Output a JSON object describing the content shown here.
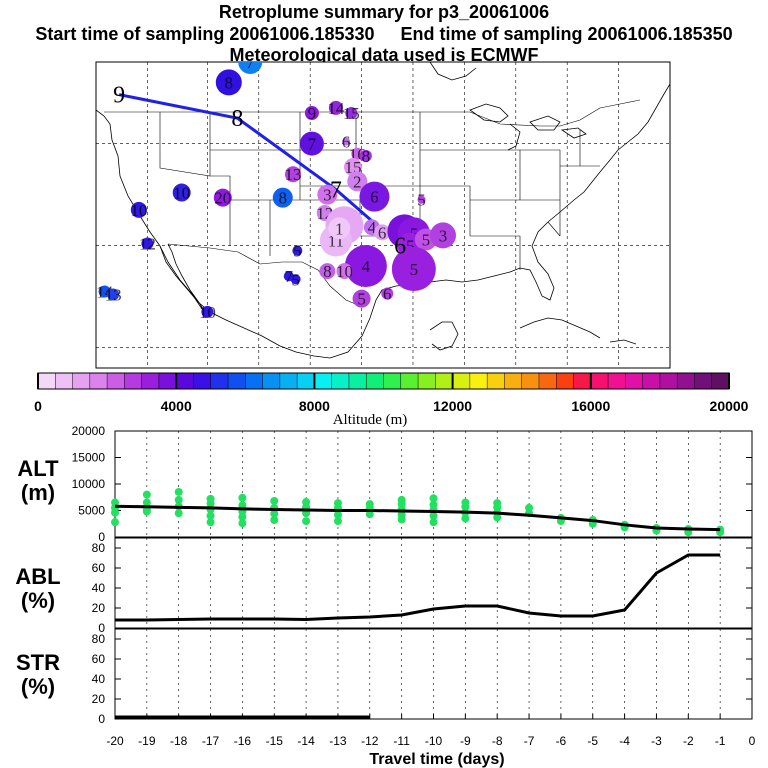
{
  "header": {
    "title": "Retroplume summary for p3_20061006",
    "start_label": "Start time of sampling 20061006.185330",
    "end_label": "End time of sampling 20061006.185350",
    "met_label": "Meteorological data used is ECMWF"
  },
  "colorbar": {
    "ticks": [
      "0",
      "4000",
      "8000",
      "12000",
      "16000",
      "20000"
    ],
    "label": "Altitude (m)",
    "colors": [
      "#f4d8f8",
      "#eec0f5",
      "#e6a2f1",
      "#dc82ec",
      "#cc5ee6",
      "#b53be0",
      "#9a1fdc",
      "#7a10dc",
      "#5a08dc",
      "#3a10e6",
      "#2030ec",
      "#1050f0",
      "#0870f2",
      "#0890f2",
      "#08b0f2",
      "#08d0f2",
      "#08f0f0",
      "#08f0c8",
      "#08f0a0",
      "#10f078",
      "#30f050",
      "#58f030",
      "#88f020",
      "#b0f018",
      "#d8f010",
      "#f8f010",
      "#f8d010",
      "#f8b010",
      "#f89010",
      "#f86810",
      "#f84010",
      "#f81848",
      "#f81070",
      "#f01090",
      "#e010a8",
      "#c810a8",
      "#b010a0",
      "#901090",
      "#701078",
      "#601060"
    ]
  },
  "map": {
    "trajectory_labels": [
      {
        "text": "9",
        "lon": -128.3,
        "lat": 46.8,
        "color": "#000000"
      },
      {
        "text": "8",
        "lon": -114.5,
        "lat": 44.5,
        "color": "#000000"
      },
      {
        "text": "7",
        "lon": -103.0,
        "lat": 37.5,
        "color": "#000000"
      },
      {
        "text": "6",
        "lon": -95.5,
        "lat": 32.0,
        "color": "#000000"
      }
    ],
    "plume_markers": [
      {
        "text": "7",
        "lon": -113.0,
        "lat": 50.0,
        "color": "#1080f0",
        "size": 12
      },
      {
        "text": "8",
        "lon": -115.5,
        "lat": 48.0,
        "color": "#3010e0",
        "size": 13
      },
      {
        "text": "9",
        "lon": -105.8,
        "lat": 45.0,
        "color": "#9018e0",
        "size": 7
      },
      {
        "text": "14",
        "lon": -103.0,
        "lat": 45.5,
        "color": "#9028d8",
        "size": 7
      },
      {
        "text": "15",
        "lon": -101.2,
        "lat": 45.0,
        "color": "#9030d8",
        "size": 6
      },
      {
        "text": "7",
        "lon": -105.8,
        "lat": 42.0,
        "color": "#6010e0",
        "size": 12
      },
      {
        "text": "6",
        "lon": -101.8,
        "lat": 42.2,
        "color": "#c070ec",
        "size": 4
      },
      {
        "text": "16",
        "lon": -100.5,
        "lat": 41.0,
        "color": "#cc60e8",
        "size": 6
      },
      {
        "text": "8",
        "lon": -99.5,
        "lat": 40.8,
        "color": "#a030e0",
        "size": 6
      },
      {
        "text": "15",
        "lon": -101.0,
        "lat": 39.7,
        "color": "#e090f0",
        "size": 9
      },
      {
        "text": "13",
        "lon": -108.0,
        "lat": 39.0,
        "color": "#b040e0",
        "size": 8
      },
      {
        "text": "2",
        "lon": -100.5,
        "lat": 38.3,
        "color": "#d080ee",
        "size": 10
      },
      {
        "text": "3",
        "lon": -104.0,
        "lat": 37.0,
        "color": "#d070ec",
        "size": 10
      },
      {
        "text": "6",
        "lon": -98.5,
        "lat": 36.8,
        "color": "#7818e0",
        "size": 15
      },
      {
        "text": "5",
        "lon": -93.0,
        "lat": 36.5,
        "color": "#b040e0",
        "size": 4
      },
      {
        "text": "10",
        "lon": -121.0,
        "lat": 37.2,
        "color": "#3020e0",
        "size": 9
      },
      {
        "text": "20",
        "lon": -116.2,
        "lat": 36.7,
        "color": "#9018e0",
        "size": 9
      },
      {
        "text": "8",
        "lon": -109.2,
        "lat": 36.7,
        "color": "#1060f0",
        "size": 10
      },
      {
        "text": "10",
        "lon": -126.0,
        "lat": 35.5,
        "color": "#3018e0",
        "size": 8
      },
      {
        "text": "12",
        "lon": -104.3,
        "lat": 35.2,
        "color": "#d080ee",
        "size": 8
      },
      {
        "text": "3",
        "lon": -102.0,
        "lat": 34.0,
        "color": "#e6a8f4",
        "size": 19
      },
      {
        "text": "11",
        "lon": -103.0,
        "lat": 32.5,
        "color": "#eab8f6",
        "size": 16
      },
      {
        "text": "1",
        "lon": -102.6,
        "lat": 33.7,
        "color": "#f0c8f8",
        "size": 11
      },
      {
        "text": "4",
        "lon": -98.8,
        "lat": 33.8,
        "color": "#c070ec",
        "size": 8
      },
      {
        "text": "6",
        "lon": -97.6,
        "lat": 33.3,
        "color": "#e0a0f2",
        "size": 8
      },
      {
        "text": "4",
        "lon": -95.0,
        "lat": 33.4,
        "color": "#7a10dc",
        "size": 17
      },
      {
        "text": "5",
        "lon": -93.9,
        "lat": 33.2,
        "color": "#8a18e0",
        "size": 16
      },
      {
        "text": "5",
        "lon": -94.3,
        "lat": 32.0,
        "color": "#9a20e0",
        "size": 13
      },
      {
        "text": "5",
        "lon": -92.5,
        "lat": 32.6,
        "color": "#c050e6",
        "size": 11
      },
      {
        "text": "3",
        "lon": -90.5,
        "lat": 33.0,
        "color": "#b040e0",
        "size": 13
      },
      {
        "text": "4",
        "lon": -99.5,
        "lat": 30.0,
        "color": "#8a18e0",
        "size": 21
      },
      {
        "text": "5",
        "lon": -93.9,
        "lat": 29.7,
        "color": "#9a20e0",
        "size": 22
      },
      {
        "text": "12",
        "lon": -125.0,
        "lat": 32.2,
        "color": "#3018e0",
        "size": 6
      },
      {
        "text": "5",
        "lon": -107.5,
        "lat": 31.5,
        "color": "#3018e0",
        "size": 5
      },
      {
        "text": "8",
        "lon": -104.0,
        "lat": 29.5,
        "color": "#c060e8",
        "size": 8
      },
      {
        "text": "10",
        "lon": -102.0,
        "lat": 29.5,
        "color": "#d070ec",
        "size": 8
      },
      {
        "text": "7",
        "lon": -108.5,
        "lat": 29.0,
        "color": "#3018e0",
        "size": 5
      },
      {
        "text": "5",
        "lon": -107.7,
        "lat": 28.7,
        "color": "#3018e0",
        "size": 5
      },
      {
        "text": "14",
        "lon": -130.0,
        "lat": 27.5,
        "color": "#1050f0",
        "size": 6
      },
      {
        "text": "13",
        "lon": -129.0,
        "lat": 27.2,
        "color": "#2040ec",
        "size": 6
      },
      {
        "text": "10",
        "lon": -118.0,
        "lat": 25.5,
        "color": "#3018e0",
        "size": 6
      },
      {
        "text": "5",
        "lon": -100.0,
        "lat": 26.8,
        "color": "#b040e0",
        "size": 9
      },
      {
        "text": "6",
        "lon": -97.0,
        "lat": 27.3,
        "color": "#b040e0",
        "size": 6
      }
    ]
  },
  "chart_data": [
    {
      "type": "scatter",
      "panel": "ALT",
      "ylabel": "ALT (m)",
      "ylim": [
        0,
        20000
      ],
      "yticks": [
        "0",
        "5000",
        "10000",
        "15000",
        "20000"
      ],
      "x": [
        -20,
        -19,
        -18,
        -17,
        -16,
        -15,
        -14,
        -13,
        -12,
        -11,
        -10,
        -9,
        -8,
        -7,
        -6,
        -5,
        -4,
        -3,
        -2,
        -1
      ],
      "median_line": [
        5800,
        5700,
        5600,
        5500,
        5300,
        5200,
        5100,
        5000,
        5000,
        4900,
        4800,
        4700,
        4500,
        4100,
        3600,
        3100,
        2300,
        1700,
        1500,
        1400
      ],
      "points": [
        [
          -20,
          6500
        ],
        [
          -20,
          5500
        ],
        [
          -20,
          4600
        ],
        [
          -20,
          2800
        ],
        [
          -19,
          8000
        ],
        [
          -19,
          6500
        ],
        [
          -19,
          5200
        ],
        [
          -19,
          4800
        ],
        [
          -18,
          8500
        ],
        [
          -18,
          7000
        ],
        [
          -18,
          5800
        ],
        [
          -18,
          4500
        ],
        [
          -17,
          7200
        ],
        [
          -17,
          6300
        ],
        [
          -17,
          5200
        ],
        [
          -17,
          4000
        ],
        [
          -17,
          2800
        ],
        [
          -16,
          7400
        ],
        [
          -16,
          6000
        ],
        [
          -16,
          4800
        ],
        [
          -16,
          3800
        ],
        [
          -16,
          2600
        ],
        [
          -15,
          6800
        ],
        [
          -15,
          5500
        ],
        [
          -15,
          4400
        ],
        [
          -15,
          3200
        ],
        [
          -14,
          6600
        ],
        [
          -14,
          5600
        ],
        [
          -14,
          4500
        ],
        [
          -14,
          3000
        ],
        [
          -13,
          6400
        ],
        [
          -13,
          5500
        ],
        [
          -13,
          4200
        ],
        [
          -13,
          3000
        ],
        [
          -12,
          6200
        ],
        [
          -12,
          5400
        ],
        [
          -12,
          4300
        ],
        [
          -11,
          7000
        ],
        [
          -11,
          6200
        ],
        [
          -11,
          5200
        ],
        [
          -11,
          4200
        ],
        [
          -11,
          3300
        ],
        [
          -10,
          7300
        ],
        [
          -10,
          6100
        ],
        [
          -10,
          5100
        ],
        [
          -10,
          4000
        ],
        [
          -10,
          2800
        ],
        [
          -9,
          6500
        ],
        [
          -9,
          5700
        ],
        [
          -9,
          4600
        ],
        [
          -9,
          3500
        ],
        [
          -8,
          6400
        ],
        [
          -8,
          5600
        ],
        [
          -8,
          4600
        ],
        [
          -8,
          3700
        ],
        [
          -7,
          5500
        ],
        [
          -7,
          4500
        ],
        [
          -6,
          3600
        ],
        [
          -6,
          3000
        ],
        [
          -5,
          3200
        ],
        [
          -5,
          2500
        ],
        [
          -4,
          2300
        ],
        [
          -4,
          1800
        ],
        [
          -3,
          1700
        ],
        [
          -3,
          1200
        ],
        [
          -2,
          1500
        ],
        [
          -2,
          900
        ],
        [
          -1,
          1400
        ],
        [
          -1,
          900
        ]
      ]
    },
    {
      "type": "line",
      "panel": "ABL",
      "ylabel": "ABL (%)",
      "ylim": [
        0,
        90
      ],
      "yticks": [
        "0",
        "20",
        "40",
        "60",
        "80"
      ],
      "x": [
        -20,
        -19,
        -18,
        -17,
        -16,
        -15,
        -14,
        -13,
        -12,
        -11,
        -10,
        -9,
        -8,
        -7,
        -6,
        -5,
        -4,
        -3,
        -2,
        -1
      ],
      "values": [
        8,
        8,
        8.5,
        9,
        9,
        9,
        8.5,
        10,
        11,
        13,
        19,
        22,
        22,
        15,
        12,
        12,
        18,
        55,
        73,
        73
      ]
    },
    {
      "type": "line",
      "panel": "STR",
      "ylabel": "STR (%)",
      "ylim": [
        0,
        90
      ],
      "yticks": [
        "0",
        "20",
        "40",
        "60",
        "80"
      ],
      "x": [
        -20,
        -19,
        -18,
        -17,
        -16,
        -15,
        -14,
        -13,
        -12
      ],
      "values": [
        2,
        2,
        2,
        2,
        2,
        2,
        2,
        2,
        2
      ]
    }
  ],
  "xaxis": {
    "label": "Travel time (days)",
    "ticks": [
      "-20",
      "-19",
      "-18",
      "-17",
      "-16",
      "-15",
      "-14",
      "-13",
      "-12",
      "-11",
      "-10",
      "-9",
      "-8",
      "-7",
      "-6",
      "-5",
      "-4",
      "-3",
      "-2",
      "-1",
      "0"
    ]
  },
  "panel_labels": {
    "alt": "ALT",
    "alt_unit": "(m)",
    "abl": "ABL",
    "abl_unit": "(%)",
    "str": "STR",
    "str_unit": "(%)"
  }
}
